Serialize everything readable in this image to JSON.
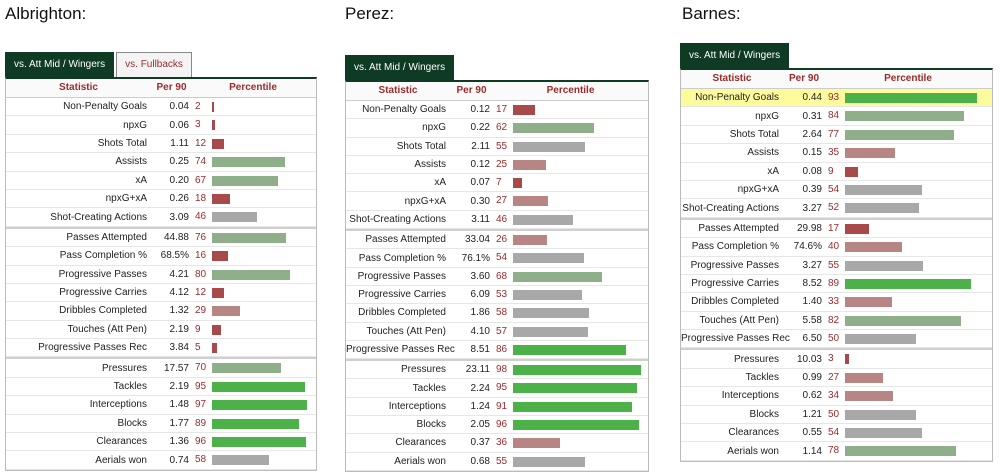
{
  "colors": {
    "tab_active_bg": "#0f3a24",
    "pct_high": "#4db14a",
    "pct_mid_green": "#8fae8a",
    "pct_mid_gray": "#a8a8a8",
    "pct_mid_red": "#b88585",
    "pct_low": "#a84a4a",
    "highlight_row": "#fdfb9c"
  },
  "headers": {
    "statistic": "Statistic",
    "per90": "Per 90",
    "percentile": "Percentile"
  },
  "panels": [
    {
      "name": "Albrighton:",
      "tabs": [
        {
          "label": "vs. Att Mid / Wingers",
          "active": true
        },
        {
          "label": "vs. Fullbacks",
          "active": false
        }
      ],
      "rows": [
        {
          "stat": "Non-Penalty Goals",
          "per90": "0.04",
          "pct": 2
        },
        {
          "stat": "npxG",
          "per90": "0.06",
          "pct": 3
        },
        {
          "stat": "Shots Total",
          "per90": "1.11",
          "pct": 12
        },
        {
          "stat": "Assists",
          "per90": "0.25",
          "pct": 74
        },
        {
          "stat": "xA",
          "per90": "0.20",
          "pct": 67
        },
        {
          "stat": "npxG+xA",
          "per90": "0.26",
          "pct": 18
        },
        {
          "stat": "Shot-Creating Actions",
          "per90": "3.09",
          "pct": 46
        },
        {
          "stat": "Passes Attempted",
          "per90": "44.88",
          "pct": 76,
          "group_start": true
        },
        {
          "stat": "Pass Completion %",
          "per90": "68.5%",
          "pct": 16
        },
        {
          "stat": "Progressive Passes",
          "per90": "4.21",
          "pct": 80
        },
        {
          "stat": "Progressive Carries",
          "per90": "4.12",
          "pct": 12
        },
        {
          "stat": "Dribbles Completed",
          "per90": "1.32",
          "pct": 29
        },
        {
          "stat": "Touches (Att Pen)",
          "per90": "2.19",
          "pct": 9
        },
        {
          "stat": "Progressive Passes Rec",
          "per90": "3.84",
          "pct": 5
        },
        {
          "stat": "Pressures",
          "per90": "17.57",
          "pct": 70,
          "group_start": true
        },
        {
          "stat": "Tackles",
          "per90": "2.19",
          "pct": 95
        },
        {
          "stat": "Interceptions",
          "per90": "1.48",
          "pct": 97
        },
        {
          "stat": "Blocks",
          "per90": "1.77",
          "pct": 89
        },
        {
          "stat": "Clearances",
          "per90": "1.36",
          "pct": 96
        },
        {
          "stat": "Aerials won",
          "per90": "0.74",
          "pct": 58
        }
      ]
    },
    {
      "name": "Perez:",
      "tabs": [
        {
          "label": "vs. Att Mid / Wingers",
          "active": true
        }
      ],
      "rows": [
        {
          "stat": "Non-Penalty Goals",
          "per90": "0.12",
          "pct": 17
        },
        {
          "stat": "npxG",
          "per90": "0.22",
          "pct": 62
        },
        {
          "stat": "Shots Total",
          "per90": "2.11",
          "pct": 55
        },
        {
          "stat": "Assists",
          "per90": "0.12",
          "pct": 25
        },
        {
          "stat": "xA",
          "per90": "0.07",
          "pct": 7
        },
        {
          "stat": "npxG+xA",
          "per90": "0.30",
          "pct": 27
        },
        {
          "stat": "Shot-Creating Actions",
          "per90": "3.11",
          "pct": 46
        },
        {
          "stat": "Passes Attempted",
          "per90": "33.04",
          "pct": 26,
          "group_start": true
        },
        {
          "stat": "Pass Completion %",
          "per90": "76.1%",
          "pct": 54
        },
        {
          "stat": "Progressive Passes",
          "per90": "3.60",
          "pct": 68
        },
        {
          "stat": "Progressive Carries",
          "per90": "6.09",
          "pct": 53
        },
        {
          "stat": "Dribbles Completed",
          "per90": "1.86",
          "pct": 58
        },
        {
          "stat": "Touches (Att Pen)",
          "per90": "4.10",
          "pct": 57
        },
        {
          "stat": "Progressive Passes Rec",
          "per90": "8.51",
          "pct": 86
        },
        {
          "stat": "Pressures",
          "per90": "23.11",
          "pct": 98,
          "group_start": true
        },
        {
          "stat": "Tackles",
          "per90": "2.24",
          "pct": 95
        },
        {
          "stat": "Interceptions",
          "per90": "1.24",
          "pct": 91
        },
        {
          "stat": "Blocks",
          "per90": "2.05",
          "pct": 96
        },
        {
          "stat": "Clearances",
          "per90": "0.37",
          "pct": 36
        },
        {
          "stat": "Aerials won",
          "per90": "0.68",
          "pct": 55
        }
      ]
    },
    {
      "name": "Barnes:",
      "tabs": [
        {
          "label": "vs. Att Mid / Wingers",
          "active": true
        }
      ],
      "rows": [
        {
          "stat": "Non-Penalty Goals",
          "per90": "0.44",
          "pct": 93,
          "highlight": true
        },
        {
          "stat": "npxG",
          "per90": "0.31",
          "pct": 84
        },
        {
          "stat": "Shots Total",
          "per90": "2.64",
          "pct": 77
        },
        {
          "stat": "Assists",
          "per90": "0.15",
          "pct": 35
        },
        {
          "stat": "xA",
          "per90": "0.08",
          "pct": 9
        },
        {
          "stat": "npxG+xA",
          "per90": "0.39",
          "pct": 54
        },
        {
          "stat": "Shot-Creating Actions",
          "per90": "3.27",
          "pct": 52
        },
        {
          "stat": "Passes Attempted",
          "per90": "29.98",
          "pct": 17,
          "group_start": true
        },
        {
          "stat": "Pass Completion %",
          "per90": "74.6%",
          "pct": 40
        },
        {
          "stat": "Progressive Passes",
          "per90": "3.27",
          "pct": 55
        },
        {
          "stat": "Progressive Carries",
          "per90": "8.52",
          "pct": 89
        },
        {
          "stat": "Dribbles Completed",
          "per90": "1.40",
          "pct": 33
        },
        {
          "stat": "Touches (Att Pen)",
          "per90": "5.58",
          "pct": 82
        },
        {
          "stat": "Progressive Passes Rec",
          "per90": "6.50",
          "pct": 50
        },
        {
          "stat": "Pressures",
          "per90": "10.03",
          "pct": 3,
          "group_start": true
        },
        {
          "stat": "Tackles",
          "per90": "0.99",
          "pct": 27
        },
        {
          "stat": "Interceptions",
          "per90": "0.62",
          "pct": 34
        },
        {
          "stat": "Blocks",
          "per90": "1.21",
          "pct": 50
        },
        {
          "stat": "Clearances",
          "per90": "0.55",
          "pct": 54
        },
        {
          "stat": "Aerials won",
          "per90": "1.14",
          "pct": 78
        }
      ]
    }
  ]
}
